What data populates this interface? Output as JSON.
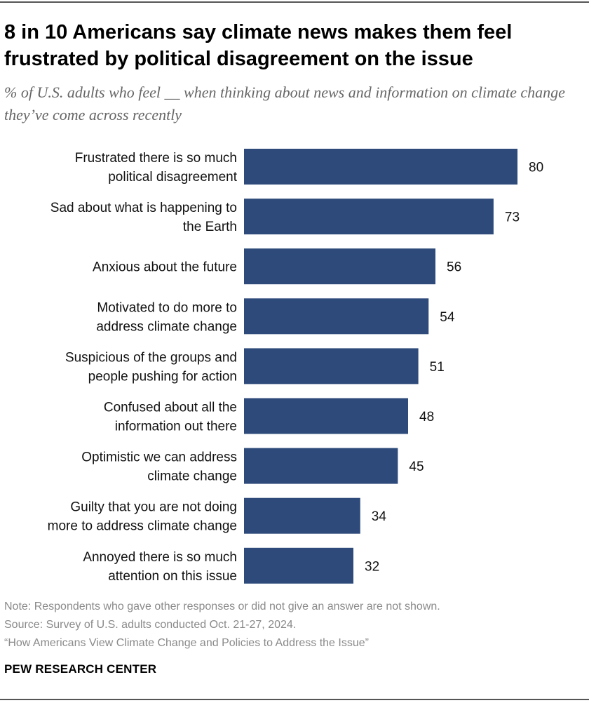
{
  "header": {
    "title": "8 in 10 Americans say climate news makes them feel frustrated by political disagreement on the issue",
    "subtitle": "% of U.S. adults who feel __ when thinking about news and information on climate change they’ve come across recently"
  },
  "chart_data": {
    "type": "bar",
    "orientation": "horizontal",
    "title": "8 in 10 Americans say climate news makes them feel frustrated by political disagreement on the issue",
    "subtitle": "% of U.S. adults who feel __ when thinking about news and information on climate change they’ve come across recently",
    "categories": [
      [
        "Frustrated there is so much",
        "political disagreement"
      ],
      [
        "Sad about what is happening to",
        "the Earth"
      ],
      [
        "Anxious about the future"
      ],
      [
        "Motivated to do more to",
        "address climate change"
      ],
      [
        "Suspicious of the groups and",
        "people pushing for action"
      ],
      [
        "Confused about all the",
        "information out there"
      ],
      [
        "Optimistic we can address",
        "climate change"
      ],
      [
        "Guilty that you are not doing",
        "more to address climate change"
      ],
      [
        "Annoyed there is so much",
        "attention on this issue"
      ]
    ],
    "values": [
      80,
      73,
      56,
      54,
      51,
      48,
      45,
      34,
      32
    ],
    "xlabel": "",
    "ylabel": "",
    "xlim": [
      0,
      100
    ],
    "grid": false,
    "legend": "none",
    "bar_color": "#2d4a7a"
  },
  "footer": {
    "note": "Note: Respondents who gave other responses or did not give an answer are not shown.",
    "source": "Source: Survey of U.S. adults conducted Oct. 21-27, 2024.",
    "report": "“How Americans View Climate Change and Policies to Address the Issue”",
    "org": "PEW RESEARCH CENTER"
  }
}
